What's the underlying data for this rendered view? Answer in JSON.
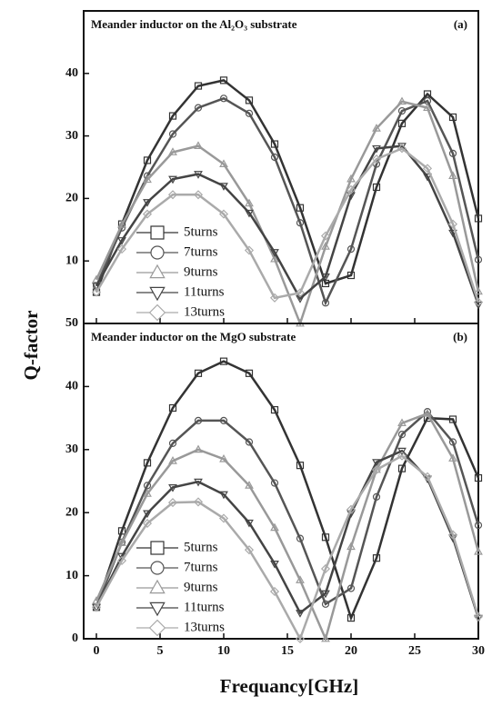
{
  "chart_data": [
    {
      "type": "line",
      "title": "Meander inductor on the Al₂O₃ substrate",
      "annotation": "(a)",
      "ylabel": "Q-factor",
      "x": [
        0,
        2,
        4,
        6,
        8,
        10,
        12,
        14,
        16,
        18,
        20,
        22,
        24,
        26,
        28,
        30
      ],
      "xlim": [
        -1,
        30
      ],
      "xticks": [
        0,
        5,
        10,
        15,
        20,
        25,
        30
      ],
      "ylim": [
        0,
        50
      ],
      "yticks": [
        10,
        20,
        30,
        40
      ],
      "legend": "lower left",
      "series": [
        {
          "name": "5turns",
          "marker": "square",
          "color": "#333333",
          "values": [
            5,
            15.9,
            26.1,
            33.2,
            38,
            38.9,
            35.7,
            28.7,
            18.5,
            6.4,
            7.7,
            21.8,
            32,
            36.7,
            33,
            16.8
          ]
        },
        {
          "name": "7turns",
          "marker": "circle",
          "color": "#555555",
          "values": [
            6,
            15.3,
            23.6,
            30.3,
            34.5,
            36,
            33.6,
            26.6,
            16.1,
            3.3,
            11.9,
            25.5,
            34,
            35.6,
            27.2,
            10.2
          ]
        },
        {
          "name": "9turns",
          "marker": "triangle-up",
          "color": "#999999",
          "values": [
            7,
            15.8,
            23,
            27.4,
            28.4,
            25.5,
            19.2,
            10.3,
            0,
            12.3,
            23.1,
            31.2,
            35.5,
            34.5,
            23.6,
            5.1
          ]
        },
        {
          "name": "11turns",
          "marker": "triangle-down",
          "color": "#444444",
          "values": [
            6,
            13.3,
            19.4,
            23.1,
            23.9,
            22,
            17.7,
            11.4,
            4,
            7.5,
            20.5,
            28,
            28.4,
            23.5,
            14.5,
            3
          ]
        },
        {
          "name": "13turns",
          "marker": "diamond",
          "color": "#aaaaaa",
          "values": [
            5,
            11.9,
            17.5,
            20.6,
            20.6,
            17.5,
            11.7,
            4.1,
            4.9,
            14,
            21.4,
            26.3,
            28,
            24.8,
            15.9,
            3.4
          ]
        }
      ]
    },
    {
      "type": "line",
      "title": "Meander inductor on the MgO substrate",
      "annotation": "(b)",
      "xlabel": "Frequancy[GHz]",
      "x": [
        0,
        2,
        4,
        6,
        8,
        10,
        12,
        14,
        16,
        18,
        20,
        22,
        24,
        26,
        28,
        30
      ],
      "xlim": [
        -1,
        30
      ],
      "xticks": [
        0,
        5,
        10,
        15,
        20,
        25,
        30
      ],
      "ylim": [
        0,
        50
      ],
      "yticks": [
        0,
        10,
        20,
        30,
        40,
        50
      ],
      "legend": "lower left",
      "series": [
        {
          "name": "5turns",
          "marker": "square",
          "color": "#333333",
          "values": [
            5,
            17.1,
            27.9,
            36.6,
            42.1,
            44,
            42.1,
            36.3,
            27.5,
            16.1,
            3.3,
            12.8,
            27,
            35,
            34.8,
            25.5
          ]
        },
        {
          "name": "7turns",
          "marker": "circle",
          "color": "#555555",
          "values": [
            5,
            15.3,
            24.3,
            31,
            34.6,
            34.6,
            31.2,
            24.7,
            15.9,
            5.5,
            8,
            22.5,
            32.4,
            36,
            31.2,
            18
          ]
        },
        {
          "name": "9turns",
          "marker": "triangle-up",
          "color": "#999999",
          "values": [
            6,
            15.2,
            23,
            28.2,
            30,
            28.5,
            24.3,
            17.6,
            9.3,
            0,
            14.6,
            26.8,
            34.2,
            35.7,
            28.6,
            13.8
          ]
        },
        {
          "name": "11turns",
          "marker": "triangle-down",
          "color": "#444444",
          "values": [
            5,
            13.1,
            19.9,
            24,
            24.9,
            22.9,
            18.4,
            11.9,
            4.1,
            7.2,
            19.9,
            28,
            29.8,
            25.4,
            16,
            3.3
          ]
        },
        {
          "name": "13turns",
          "marker": "diamond",
          "color": "#aaaaaa",
          "values": [
            5,
            12.4,
            18.3,
            21.6,
            21.7,
            19.1,
            14.1,
            7.5,
            0,
            11.1,
            20.5,
            26.8,
            29,
            25.7,
            16.5,
            3.5
          ]
        }
      ]
    }
  ]
}
